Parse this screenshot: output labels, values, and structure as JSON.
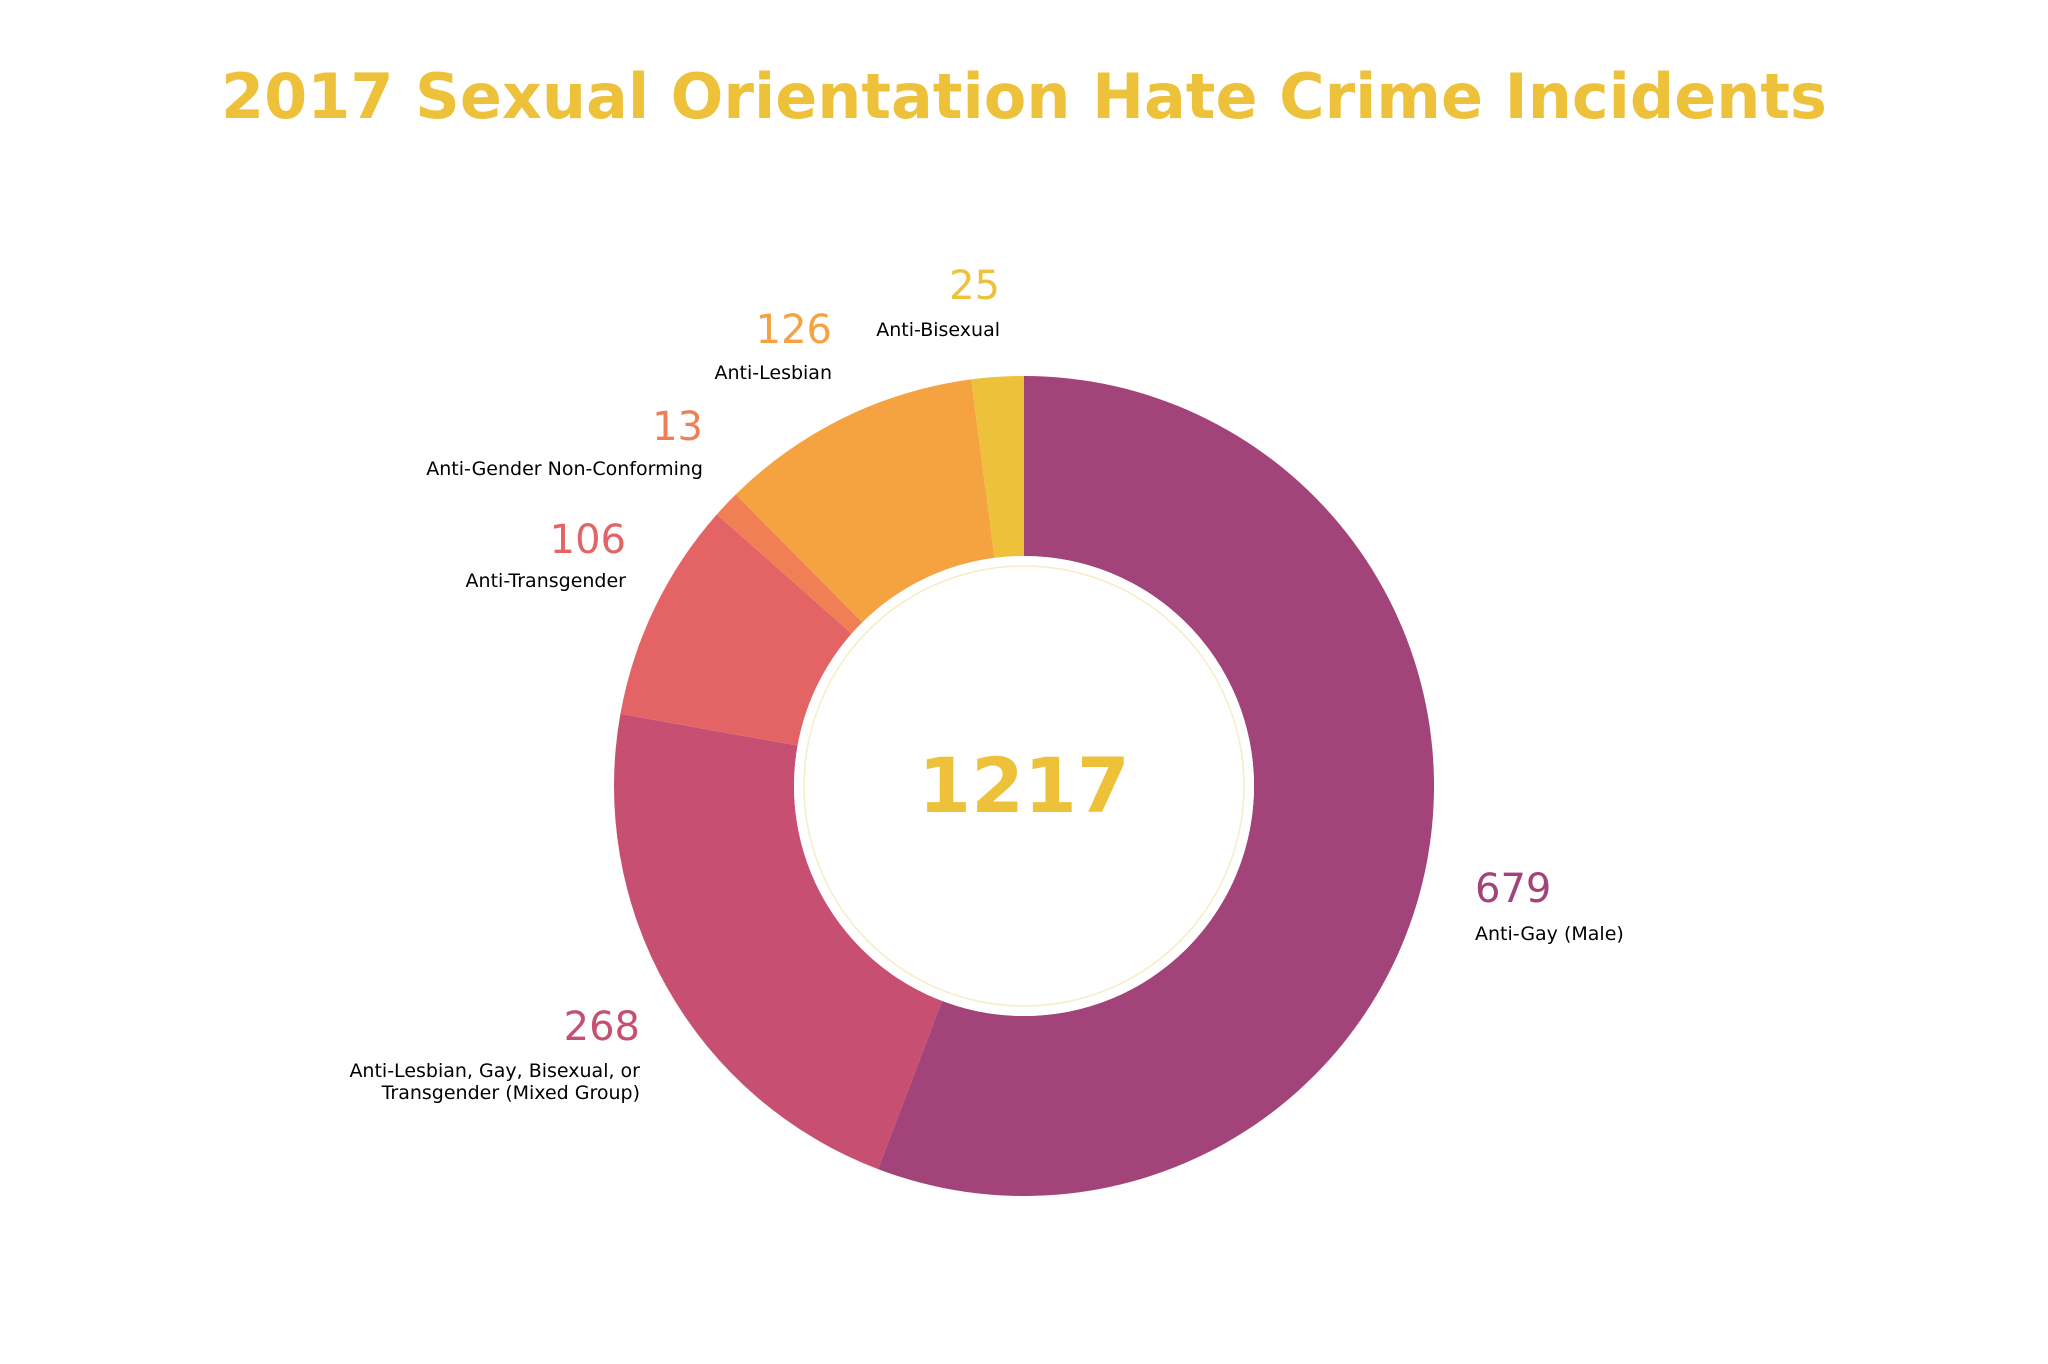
{
  "chart_data": {
    "type": "pie",
    "title": "2017 Sexual Orientation Hate Crime Incidents",
    "center_total": "1217",
    "slices": [
      {
        "label": "Anti-Gay (Male)",
        "value": 679,
        "color": "#A24379"
      },
      {
        "label": "Anti-Lesbian, Gay, Bisexual, or Transgender (Mixed Group)",
        "value": 268,
        "color": "#C75072"
      },
      {
        "label": "Anti-Transgender",
        "value": 106,
        "color": "#E46466"
      },
      {
        "label": "Anti-Gender Non-Conforming",
        "value": 13,
        "color": "#F07F56"
      },
      {
        "label": "Anti-Lesbian",
        "value": 126,
        "color": "#F5A240"
      },
      {
        "label": "Anti-Bisexual",
        "value": 25,
        "color": "#EDC23A"
      }
    ],
    "start_angle_deg": 0,
    "direction": "clockwise",
    "donut": true,
    "legend": "none"
  }
}
